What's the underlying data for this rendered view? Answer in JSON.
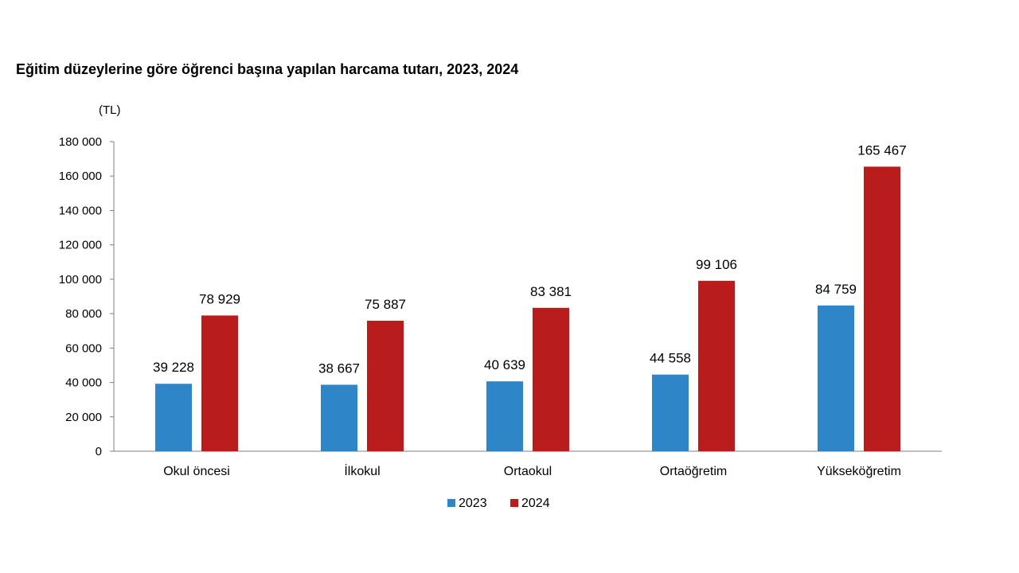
{
  "chart_data": {
    "type": "bar",
    "title": "Eğitim düzeylerine göre öğrenci başına yapılan harcama tutarı, 2023, 2024",
    "unit_label": "(TL)",
    "xlabel": "",
    "ylabel": "",
    "categories": [
      "Okul öncesi",
      "İlkokul",
      "Ortaokul",
      "Ortaöğretim",
      "Yükseköğretim"
    ],
    "series": [
      {
        "name": "2023",
        "color": "#2e86c8",
        "values": [
          39228,
          38667,
          40639,
          44558,
          84759
        ],
        "labels": [
          "39 228",
          "38 667",
          "40 639",
          "44 558",
          "84 759"
        ]
      },
      {
        "name": "2024",
        "color": "#b91c1c",
        "values": [
          78929,
          75887,
          83381,
          99106,
          165467
        ],
        "labels": [
          "78 929",
          "75 887",
          "83 381",
          "99 106",
          "165 467"
        ]
      }
    ],
    "ylim": [
      0,
      180000
    ],
    "yticks": [
      0,
      20000,
      40000,
      60000,
      80000,
      100000,
      120000,
      140000,
      160000,
      180000
    ],
    "ytick_labels": [
      "0",
      "20 000",
      "40 000",
      "60 000",
      "80 000",
      "100 000",
      "120 000",
      "140 000",
      "160 000",
      "180 000"
    ],
    "grid": false,
    "legend_position": "bottom-center"
  }
}
